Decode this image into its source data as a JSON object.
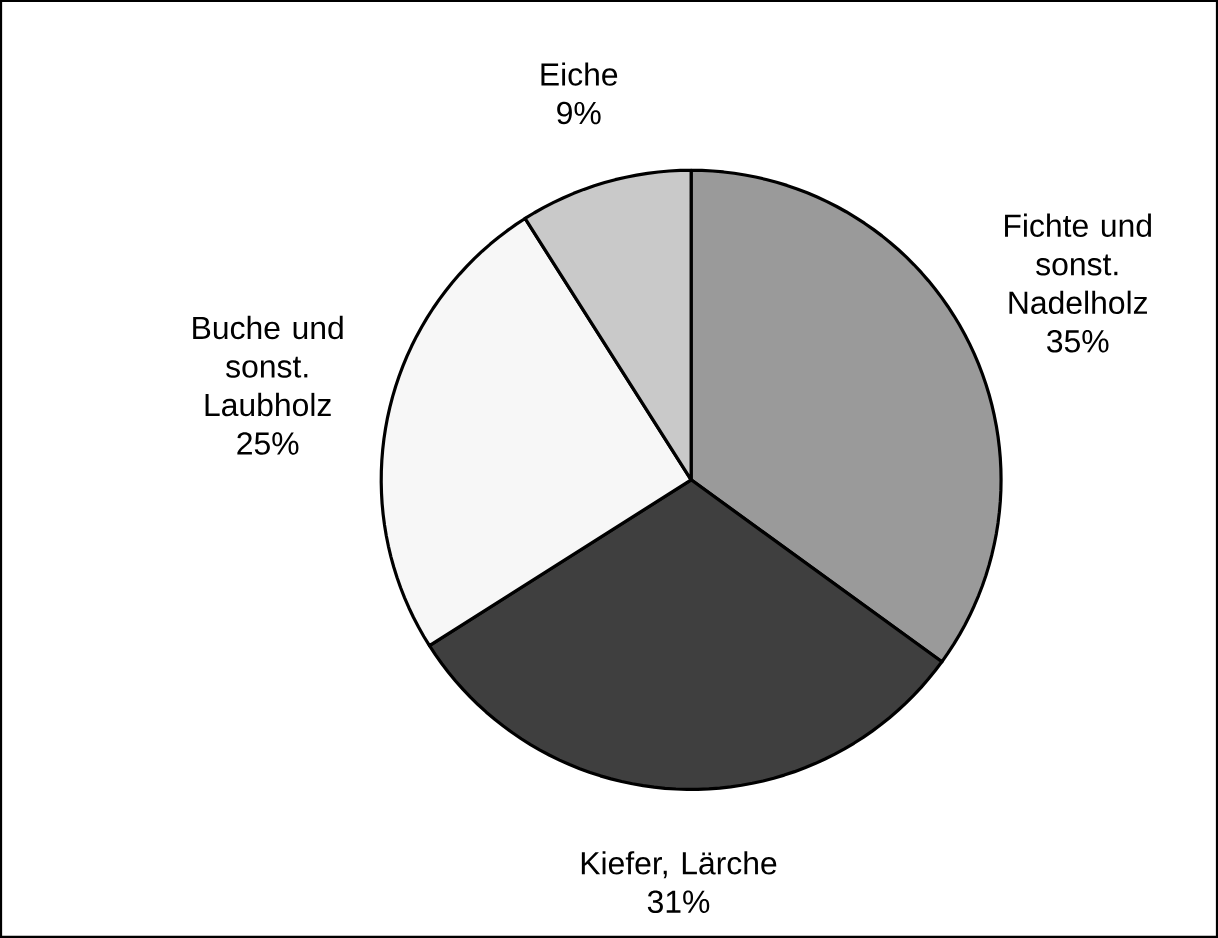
{
  "chart_data": {
    "type": "pie",
    "categories": [
      "Fichte und sonst. Nadelholz",
      "Kiefer, Lärche",
      "Buche und sonst. Laubholz",
      "Eiche"
    ],
    "values": [
      35,
      31,
      25,
      9
    ],
    "value_labels": [
      "35%",
      "31%",
      "25%",
      "9%"
    ],
    "colors": [
      "#9a9a9a",
      "#3f3f3f",
      "#f7f7f7",
      "#c9c9c9"
    ]
  }
}
